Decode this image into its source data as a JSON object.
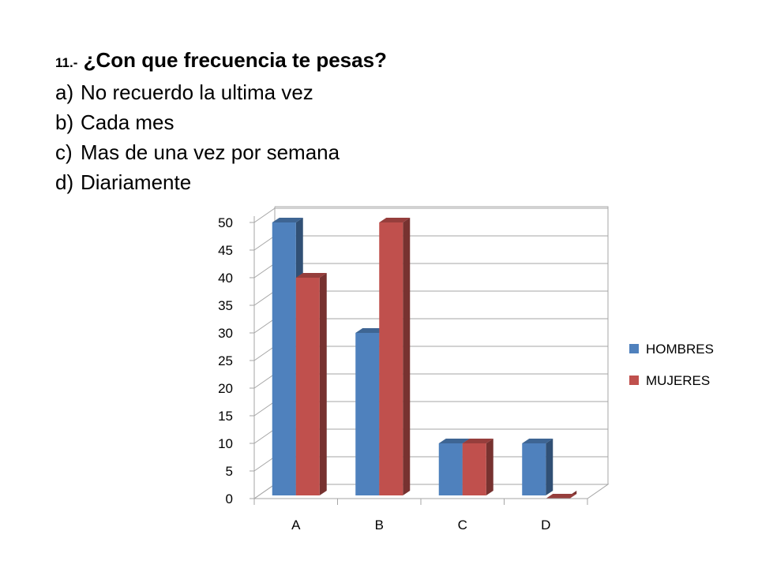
{
  "question": {
    "number": "11.-",
    "text": "¿Con que frecuencia te pesas?",
    "options": [
      {
        "letter": "a)",
        "text": "No recuerdo la ultima vez"
      },
      {
        "letter": "b)",
        "text": "Cada mes"
      },
      {
        "letter": "c)",
        "text": "Mas de una vez por semana"
      },
      {
        "letter": "d)",
        "text": "Diariamente"
      }
    ]
  },
  "chart_data": {
    "type": "bar",
    "style": "3d-clustered-column",
    "categories": [
      "A",
      "B",
      "C",
      "D"
    ],
    "series": [
      {
        "name": "HOMBRES",
        "values": [
          50,
          30,
          10,
          10
        ],
        "color": "#4f81bd"
      },
      {
        "name": "MUJERES",
        "values": [
          40,
          50,
          10,
          0
        ],
        "color": "#c0504d"
      }
    ],
    "ylim": [
      0,
      50
    ],
    "yticks": [
      0,
      5,
      10,
      15,
      20,
      25,
      30,
      35,
      40,
      45,
      50
    ],
    "grid": true,
    "legend": "right"
  }
}
